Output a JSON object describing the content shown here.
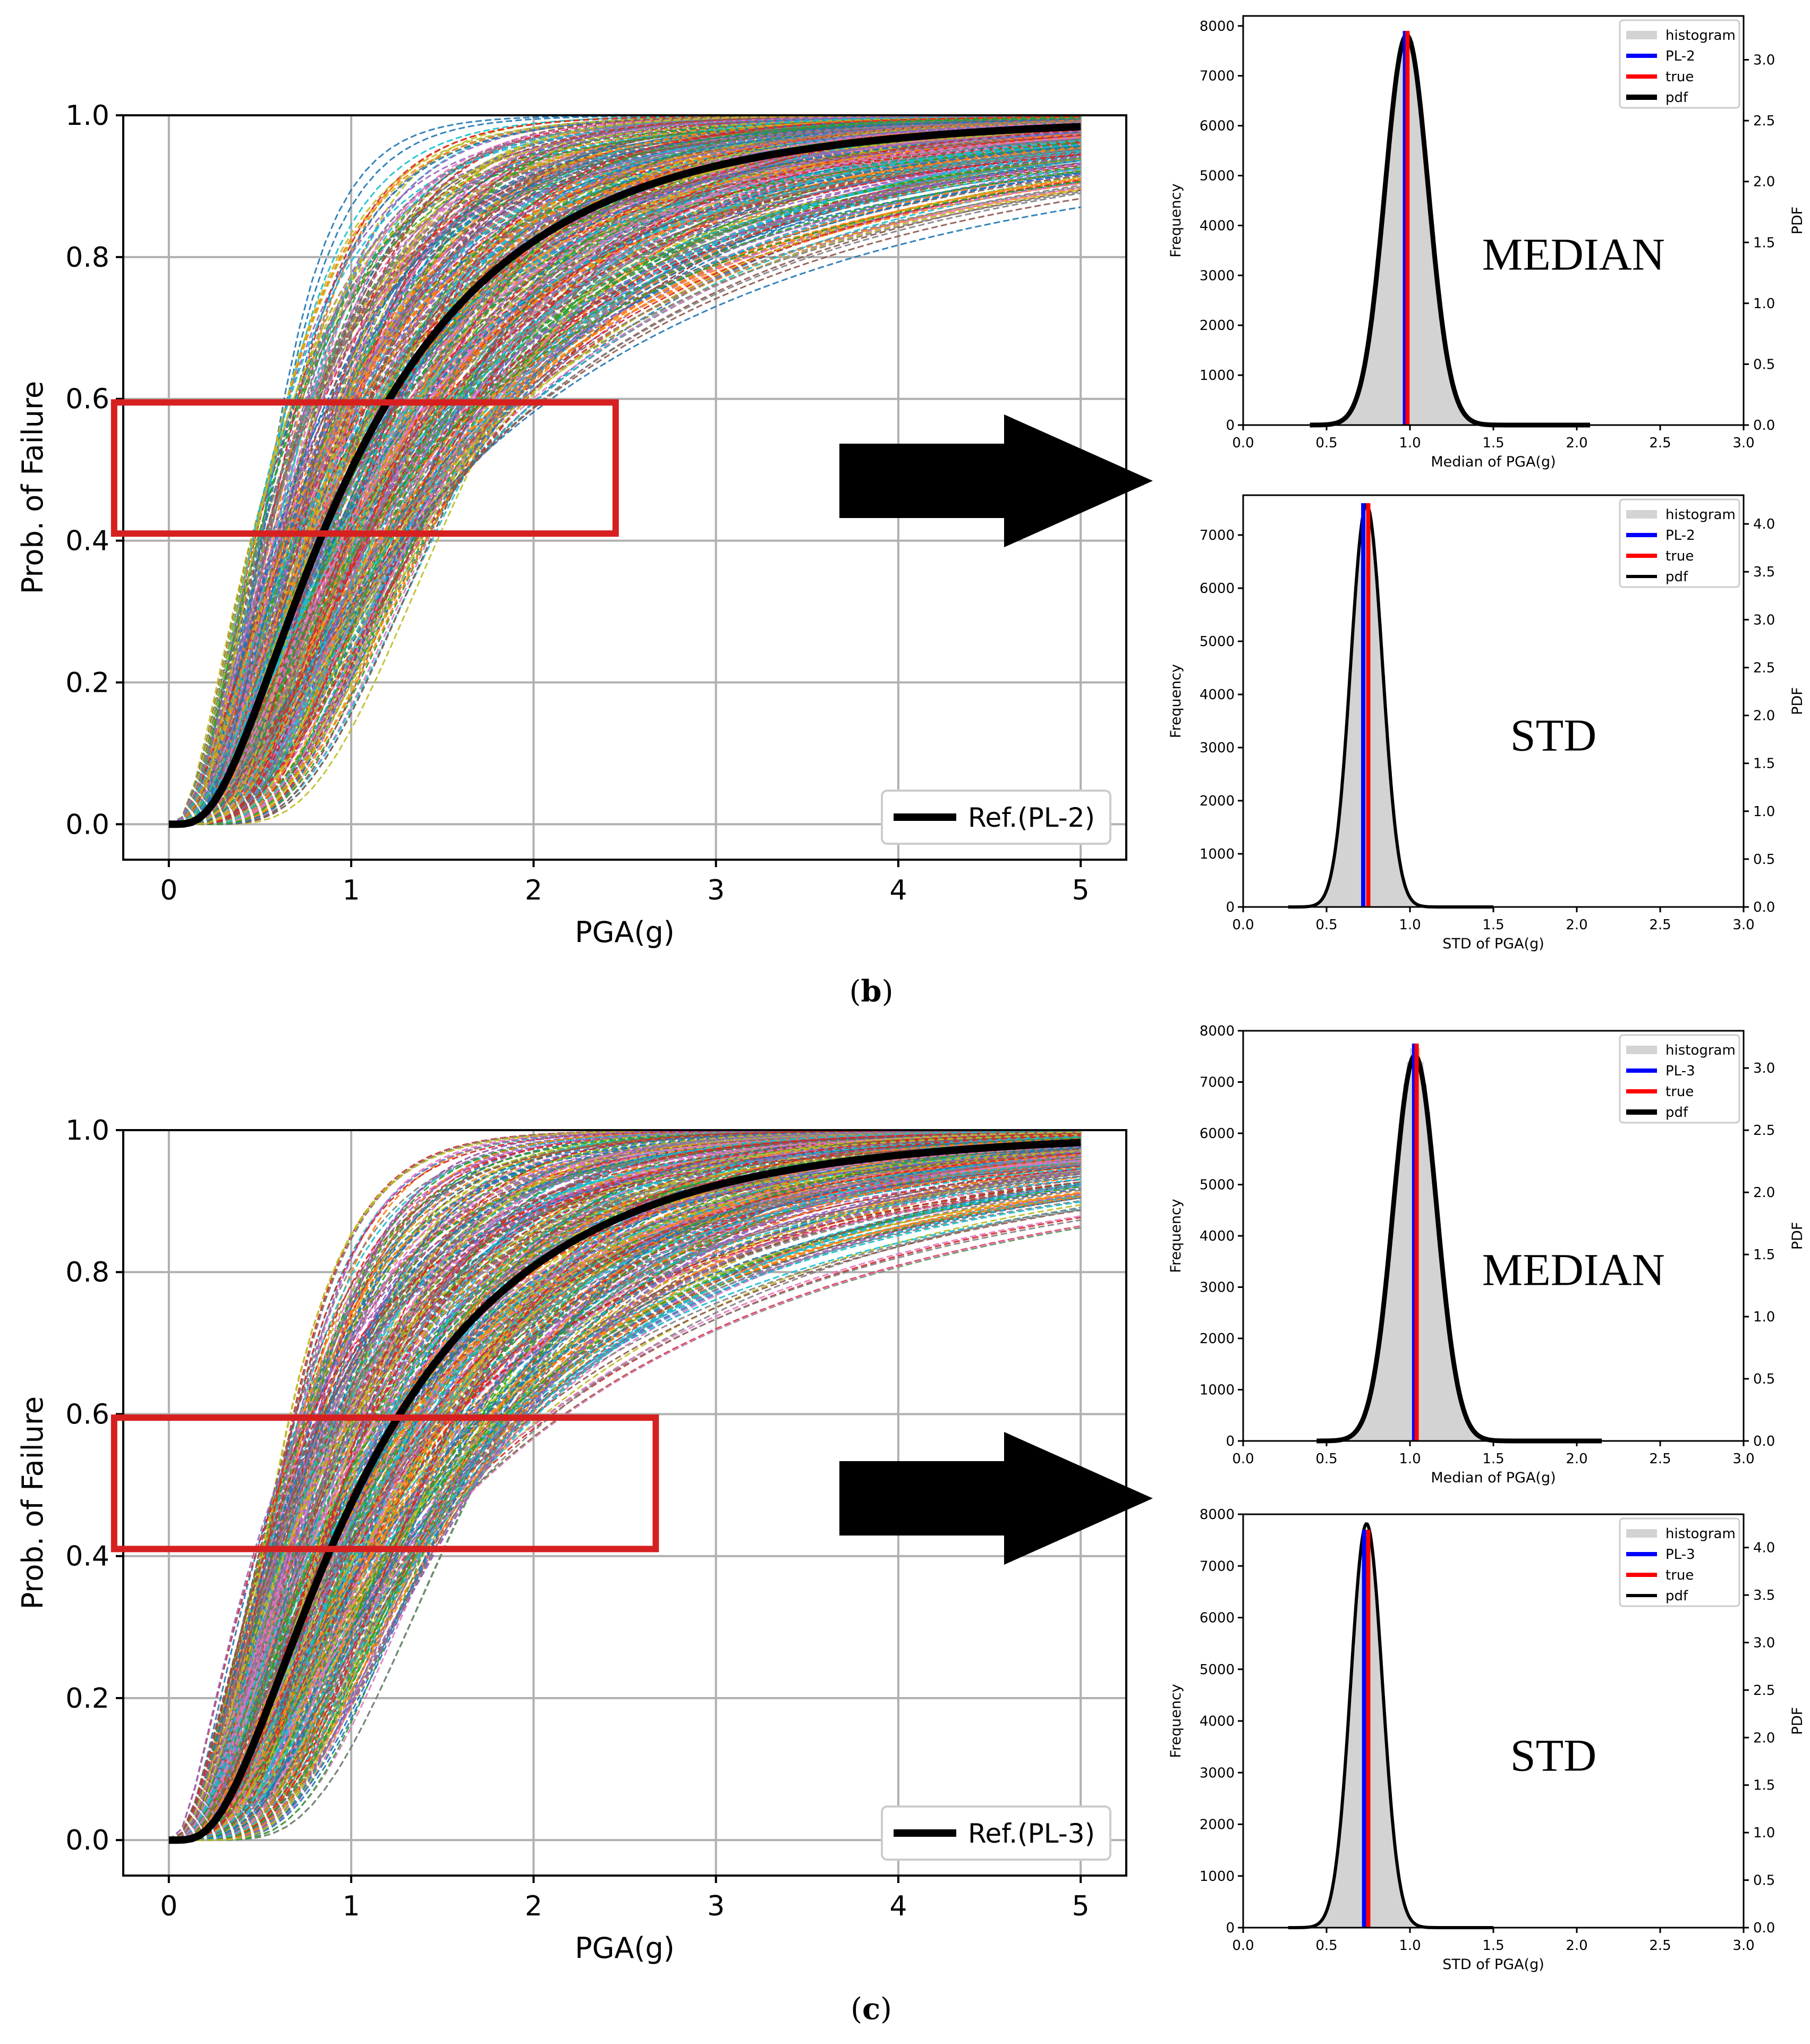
{
  "figure": {
    "panels": [
      {
        "id": "b",
        "label_open": "(",
        "label_letter": "b",
        "label_close": ")",
        "fragility": {
          "xlabel": "PGA(g)",
          "ylabel": "Prob. of Failure",
          "xticks": [
            "0",
            "1",
            "2",
            "3",
            "4",
            "5"
          ],
          "yticks": [
            "0.0",
            "0.2",
            "0.4",
            "0.6",
            "0.8",
            "1.0"
          ],
          "legend": "Ref.(PL-2)"
        },
        "median": {
          "note": "MEDIAN",
          "xlabel": "Median of PGA(g)",
          "ylabel": "Frequency",
          "y2label": "PDF",
          "xticks": [
            "0.0",
            "0.5",
            "1.0",
            "1.5",
            "2.0",
            "2.5",
            "3.0"
          ],
          "yticks": [
            "0",
            "1000",
            "2000",
            "3000",
            "4000",
            "5000",
            "6000",
            "7000",
            "8000"
          ],
          "y2ticks": [
            "0.0",
            "0.5",
            "1.0",
            "1.5",
            "2.0",
            "2.5",
            "3.0"
          ],
          "legend": [
            "histogram",
            "PL-2",
            "true",
            "pdf"
          ]
        },
        "std": {
          "note": "STD",
          "xlabel": "STD of PGA(g)",
          "ylabel": "Frequency",
          "y2label": "PDF",
          "xticks": [
            "0.0",
            "0.5",
            "1.0",
            "1.5",
            "2.0",
            "2.5",
            "3.0"
          ],
          "yticks": [
            "0",
            "1000",
            "2000",
            "3000",
            "4000",
            "5000",
            "6000",
            "7000"
          ],
          "y2ticks": [
            "0.0",
            "0.5",
            "1.0",
            "1.5",
            "2.0",
            "2.5",
            "3.0",
            "3.5",
            "4.0"
          ],
          "legend": [
            "histogram",
            "PL-2",
            "true",
            "pdf"
          ]
        }
      },
      {
        "id": "c",
        "label_open": "(",
        "label_letter": "c",
        "label_close": ")",
        "fragility": {
          "xlabel": "PGA(g)",
          "ylabel": "Prob. of Failure",
          "xticks": [
            "0",
            "1",
            "2",
            "3",
            "4",
            "5"
          ],
          "yticks": [
            "0.0",
            "0.2",
            "0.4",
            "0.6",
            "0.8",
            "1.0"
          ],
          "legend": "Ref.(PL-3)"
        },
        "median": {
          "note": "MEDIAN",
          "xlabel": "Median of PGA(g)",
          "ylabel": "Frequency",
          "y2label": "PDF",
          "xticks": [
            "0.0",
            "0.5",
            "1.0",
            "1.5",
            "2.0",
            "2.5",
            "3.0"
          ],
          "yticks": [
            "0",
            "1000",
            "2000",
            "3000",
            "4000",
            "5000",
            "6000",
            "7000",
            "8000"
          ],
          "y2ticks": [
            "0.0",
            "0.5",
            "1.0",
            "1.5",
            "2.0",
            "2.5",
            "3.0"
          ],
          "legend": [
            "histogram",
            "PL-3",
            "true",
            "pdf"
          ]
        },
        "std": {
          "note": "STD",
          "xlabel": "STD of PGA(g)",
          "ylabel": "Frequency",
          "y2label": "PDF",
          "xticks": [
            "0.0",
            "0.5",
            "1.0",
            "1.5",
            "2.0",
            "2.5",
            "3.0"
          ],
          "yticks": [
            "0",
            "1000",
            "2000",
            "3000",
            "4000",
            "5000",
            "6000",
            "7000",
            "8000"
          ],
          "y2ticks": [
            "0.0",
            "0.5",
            "1.0",
            "1.5",
            "2.0",
            "2.5",
            "3.0",
            "3.5",
            "4.0"
          ],
          "legend": [
            "histogram",
            "PL-3",
            "true",
            "pdf"
          ]
        }
      }
    ]
  },
  "colors": {
    "reference_curve": "#000000",
    "highlight_box": "#d62020",
    "arrow": "#000000",
    "histogram": "#d3d3d3",
    "pl_line": "#0000ff",
    "true_line": "#ff0000",
    "pdf_line": "#000000",
    "grid": "#b0b0b0",
    "sample_palette": [
      "#1f77b4",
      "#ff7f0e",
      "#2ca02c",
      "#d62728",
      "#9467bd",
      "#8c564b",
      "#e377c2",
      "#7f7f7f",
      "#bcbd22",
      "#17becf"
    ]
  },
  "chart_data": [
    {
      "panel": "b",
      "type": "line",
      "title": "",
      "xlabel": "PGA(g)",
      "ylabel": "Prob. of Failure",
      "xlim": [
        -0.25,
        5.25
      ],
      "ylim": [
        -0.05,
        1.0
      ],
      "grid": true,
      "legend_position": "lower-right",
      "reference": {
        "name": "Ref.(PL-2)",
        "model": "lognormal CDF",
        "median": 1.0,
        "beta": 0.75
      },
      "samples": {
        "style": "dashed",
        "median_range": [
          0.55,
          1.65
        ],
        "beta_range": [
          0.45,
          1.0
        ]
      },
      "highlight": {
        "x_range": [
          -0.3,
          2.45
        ],
        "y_range": [
          0.41,
          0.595
        ]
      }
    },
    {
      "panel": "b",
      "type": "bar",
      "title": "",
      "xlabel": "Median of PGA(g)",
      "ylabel": "Frequency",
      "y2label": "PDF",
      "xlim": [
        0.0,
        3.0
      ],
      "ylim": [
        0,
        8200
      ],
      "y2lim": [
        0,
        3.36
      ],
      "grid": false,
      "legend_position": "top-right",
      "series": [
        {
          "name": "histogram",
          "kind": "normal-shaped bars",
          "center": 0.98,
          "spread": 0.13,
          "peak": 7900,
          "x_range": [
            0.4,
            2.08
          ]
        },
        {
          "name": "PL-2",
          "kind": "vertical line",
          "x": 0.97
        },
        {
          "name": "true",
          "kind": "vertical line",
          "x": 0.985
        },
        {
          "name": "pdf",
          "kind": "curve",
          "center": 0.98,
          "spread": 0.13,
          "peak": 3.2
        }
      ]
    },
    {
      "panel": "b",
      "type": "bar",
      "title": "",
      "xlabel": "STD of PGA(g)",
      "ylabel": "Frequency",
      "y2label": "PDF",
      "xlim": [
        0.0,
        3.0
      ],
      "ylim": [
        0,
        7750
      ],
      "y2lim": [
        0,
        4.3
      ],
      "grid": false,
      "legend_position": "top-right",
      "series": [
        {
          "name": "histogram",
          "kind": "normal-shaped bars",
          "center": 0.74,
          "spread": 0.095,
          "peak": 7600,
          "x_range": [
            0.27,
            1.5
          ]
        },
        {
          "name": "PL-2",
          "kind": "vertical line",
          "x": 0.72
        },
        {
          "name": "true",
          "kind": "vertical line",
          "x": 0.75
        },
        {
          "name": "pdf",
          "kind": "curve",
          "center": 0.74,
          "spread": 0.095,
          "peak": 4.2
        }
      ]
    },
    {
      "panel": "c",
      "type": "line",
      "title": "",
      "xlabel": "PGA(g)",
      "ylabel": "Prob. of Failure",
      "xlim": [
        -0.25,
        5.25
      ],
      "ylim": [
        -0.05,
        1.0
      ],
      "grid": true,
      "legend_position": "lower-right",
      "reference": {
        "name": "Ref.(PL-3)",
        "model": "lognormal CDF",
        "median": 1.05,
        "beta": 0.74
      },
      "samples": {
        "style": "dashed",
        "median_range": [
          0.58,
          1.7
        ],
        "beta_range": [
          0.45,
          1.0
        ]
      },
      "highlight": {
        "x_range": [
          -0.3,
          2.67
        ],
        "y_range": [
          0.41,
          0.595
        ]
      }
    },
    {
      "panel": "c",
      "type": "bar",
      "title": "",
      "xlabel": "Median of PGA(g)",
      "ylabel": "Frequency",
      "y2label": "PDF",
      "xlim": [
        0.0,
        3.0
      ],
      "ylim": [
        0,
        8000
      ],
      "y2lim": [
        0,
        3.3
      ],
      "grid": false,
      "legend_position": "top-right",
      "series": [
        {
          "name": "histogram",
          "kind": "normal-shaped bars",
          "center": 1.03,
          "spread": 0.13,
          "peak": 7750,
          "x_range": [
            0.44,
            2.15
          ]
        },
        {
          "name": "PL-3",
          "kind": "vertical line",
          "x": 1.025
        },
        {
          "name": "true",
          "kind": "vertical line",
          "x": 1.04
        },
        {
          "name": "pdf",
          "kind": "curve",
          "center": 1.03,
          "spread": 0.13,
          "peak": 3.1
        }
      ]
    },
    {
      "panel": "c",
      "type": "bar",
      "title": "",
      "xlabel": "STD of PGA(g)",
      "ylabel": "Frequency",
      "y2label": "PDF",
      "xlim": [
        0.0,
        3.0
      ],
      "ylim": [
        0,
        8000
      ],
      "y2lim": [
        0,
        4.35
      ],
      "grid": false,
      "legend_position": "top-right",
      "series": [
        {
          "name": "histogram",
          "kind": "normal-shaped bars",
          "center": 0.74,
          "spread": 0.095,
          "peak": 7700,
          "x_range": [
            0.27,
            1.5
          ]
        },
        {
          "name": "PL-3",
          "kind": "vertical line",
          "x": 0.725
        },
        {
          "name": "true",
          "kind": "vertical line",
          "x": 0.75
        },
        {
          "name": "pdf",
          "kind": "curve",
          "center": 0.74,
          "spread": 0.095,
          "peak": 4.25
        }
      ]
    }
  ]
}
